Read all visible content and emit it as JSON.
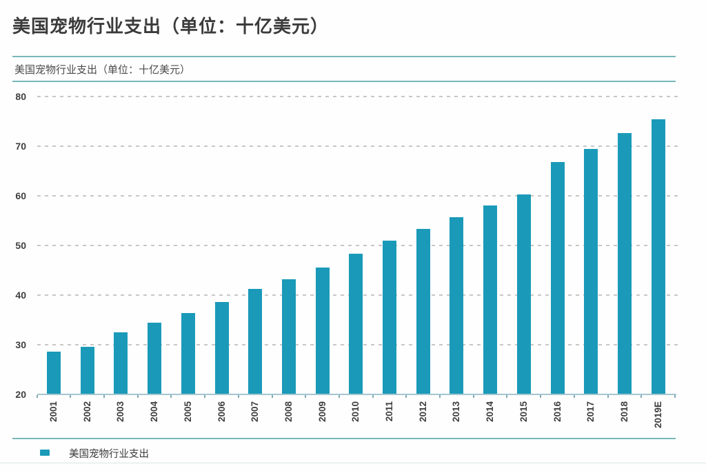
{
  "header": {
    "title": "美国宠物行业支出（单位：十亿美元）",
    "subtitle": "美国宠物行业支出（单位：十亿美元）",
    "rule_color": "#79b7ba"
  },
  "chart_data": {
    "type": "bar",
    "title": "美国宠物行业支出（单位：十亿美元）",
    "xlabel": "",
    "ylabel": "",
    "unit": "十亿美元",
    "categories": [
      "2001",
      "2002",
      "2003",
      "2004",
      "2005",
      "2006",
      "2007",
      "2008",
      "2009",
      "2010",
      "2011",
      "2012",
      "2013",
      "2014",
      "2015",
      "2016",
      "2017",
      "2018",
      "2019E"
    ],
    "values": [
      28.5,
      29.5,
      32.4,
      34.4,
      36.3,
      38.5,
      41.2,
      43.2,
      45.5,
      48.3,
      51.0,
      53.3,
      55.7,
      58.0,
      60.3,
      66.8,
      69.5,
      72.6,
      75.4
    ],
    "series_name": "美国宠物行业支出",
    "ylim": [
      20,
      80
    ],
    "yticks": [
      20,
      30,
      40,
      50,
      60,
      70,
      80
    ],
    "grid": "horizontal-dashed",
    "legend_position": "bottom-left",
    "bar_color": "#1a9ab8"
  },
  "legend": {
    "label": "美国宠物行业支出",
    "marker_color": "#1a9ab8"
  }
}
